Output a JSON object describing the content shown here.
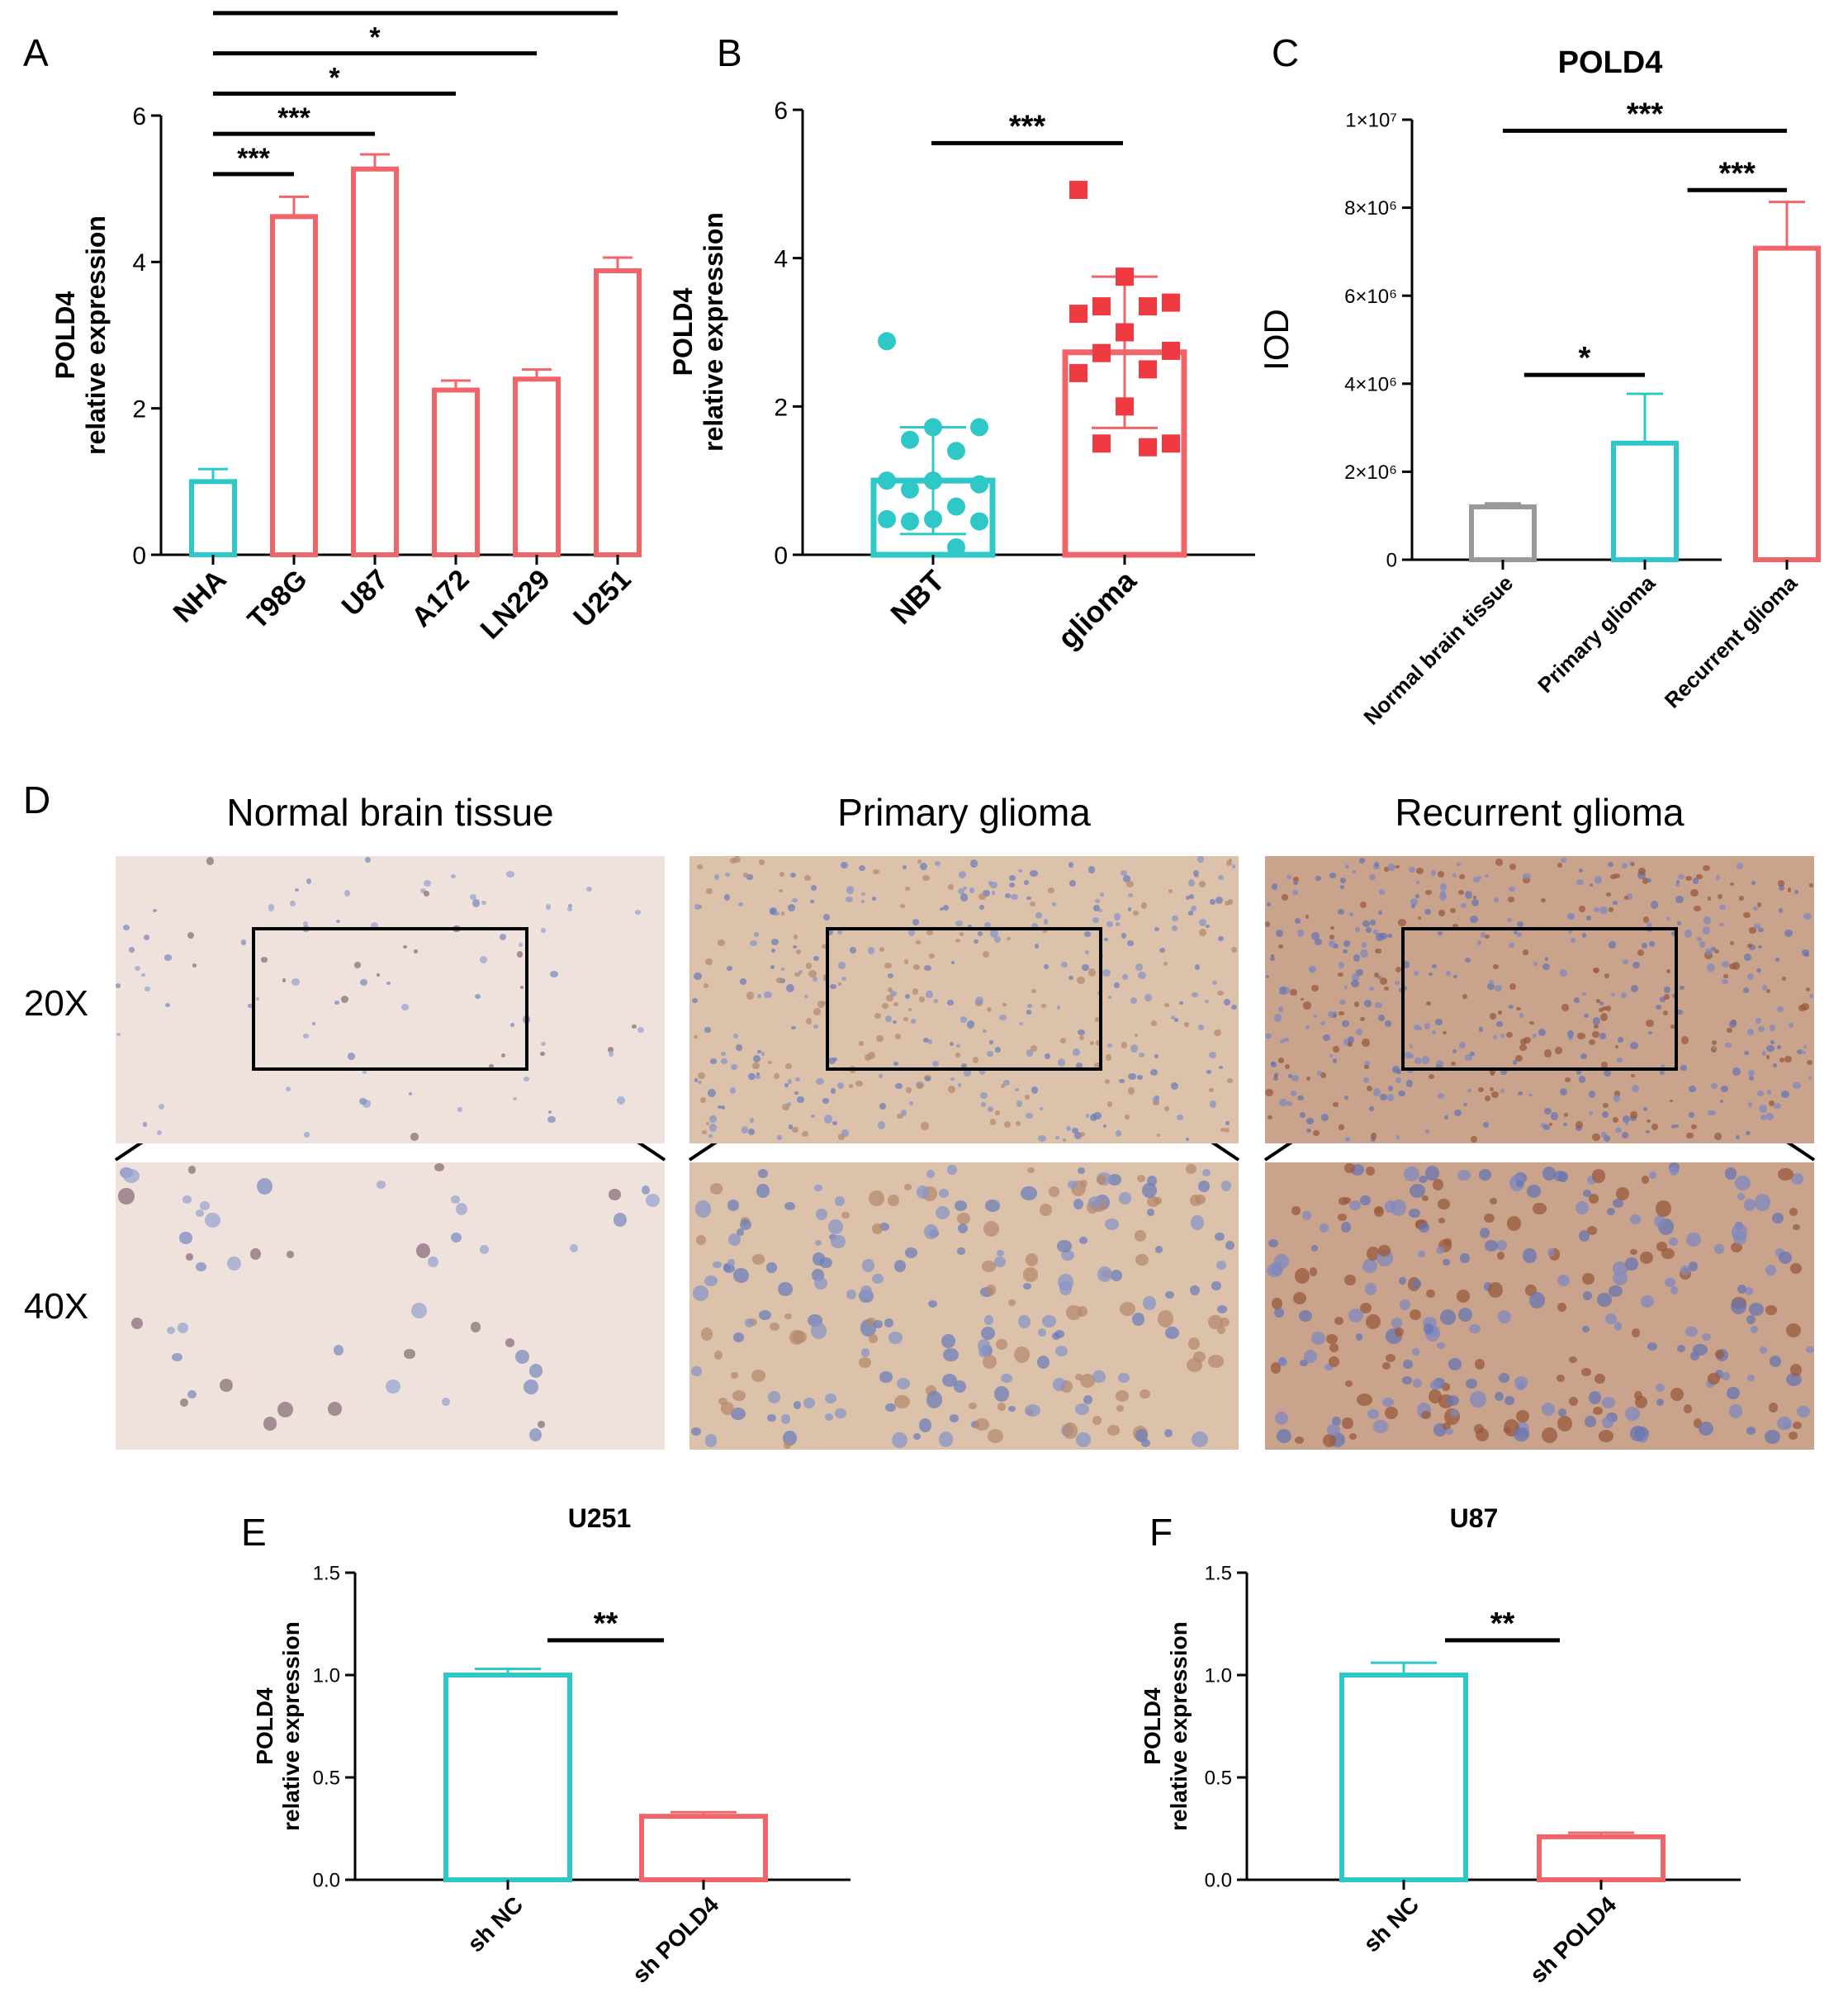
{
  "colors": {
    "cyan": "#2ec8c8",
    "red": "#f0656a",
    "gray": "#999999",
    "square_red": "#ee3a40",
    "axis": "#000000"
  },
  "panels": {
    "A": {
      "letter": "A"
    },
    "B": {
      "letter": "B"
    },
    "C": {
      "letter": "C"
    },
    "D": {
      "letter": "D"
    },
    "E": {
      "letter": "E"
    },
    "F": {
      "letter": "F"
    }
  },
  "panel_d": {
    "columns": [
      "Normal brain tissue",
      "Primary glioma",
      "Recurrent glioma"
    ],
    "rows": [
      "20X",
      "40X"
    ]
  },
  "chart_data": [
    {
      "id": "A",
      "type": "bar",
      "ylabel": [
        "POLD4",
        "relative expression"
      ],
      "ylim": [
        0,
        6
      ],
      "yticks": [
        "0",
        "2",
        "4",
        "6"
      ],
      "categories": [
        "NHA",
        "T98G",
        "U87",
        "A172",
        "LN229",
        "U251"
      ],
      "values": [
        1.0,
        4.62,
        5.27,
        2.25,
        2.4,
        3.88
      ],
      "errors": [
        0.17,
        0.27,
        0.2,
        0.13,
        0.13,
        0.18
      ],
      "colors": [
        "cyan",
        "red",
        "red",
        "red",
        "red",
        "red"
      ],
      "significance": [
        {
          "from": 0,
          "to": 1,
          "label": "***",
          "y": 5.2
        },
        {
          "from": 0,
          "to": 2,
          "label": "***",
          "y": 5.75
        },
        {
          "from": 0,
          "to": 3,
          "label": "*",
          "y": 6.3
        },
        {
          "from": 0,
          "to": 4,
          "label": "*",
          "y": 6.85
        },
        {
          "from": 0,
          "to": 5,
          "label": "**",
          "y": 7.4
        }
      ]
    },
    {
      "id": "B",
      "type": "scatter",
      "ylabel": [
        "POLD4",
        "relative expression"
      ],
      "ylim": [
        0,
        6
      ],
      "yticks": [
        "0",
        "2",
        "4",
        "6"
      ],
      "categories": [
        "NBT",
        "glioma"
      ],
      "means": [
        1.0,
        2.73
      ],
      "sd": [
        0.72,
        1.02
      ],
      "colors": [
        "cyan",
        "red"
      ],
      "points": [
        [
          2.88,
          1.72,
          1.72,
          1.55,
          1.4,
          1.0,
          1.0,
          0.95,
          0.88,
          0.65,
          0.48,
          0.48,
          0.45,
          0.45,
          0.1
        ],
        [
          4.92,
          3.75,
          3.4,
          3.35,
          3.35,
          3.25,
          3.0,
          2.75,
          2.72,
          2.5,
          2.45,
          2.0,
          1.5,
          1.5,
          1.45
        ]
      ],
      "significance": [
        {
          "from": 0,
          "to": 1,
          "label": "***",
          "y": 5.55
        }
      ]
    },
    {
      "id": "C",
      "type": "bar",
      "title": "POLD4",
      "ylabel": [
        "IOD"
      ],
      "ylim": [
        0,
        10000000
      ],
      "yticks": [
        "0",
        "2×10⁶",
        "4×10⁶",
        "6×10⁶",
        "8×10⁶",
        "1×10⁷"
      ],
      "categories": [
        "Normal brain tissue",
        "Primary glioma",
        "Recurrent glioma"
      ],
      "values": [
        1200000,
        2650000,
        7080000
      ],
      "errors": [
        80000,
        1120000,
        1050000
      ],
      "colors": [
        "gray",
        "cyan",
        "red"
      ],
      "significance": [
        {
          "from": 0,
          "to": 1,
          "label": "*",
          "y": 4200000,
          "left_offset": 0.15
        },
        {
          "from": 1,
          "to": 2,
          "label": "***",
          "y": 8400000,
          "left_offset": 0.3
        },
        {
          "from": 0,
          "to": 2,
          "label": "***",
          "y": 9750000,
          "left_offset": 0
        }
      ]
    },
    {
      "id": "E",
      "type": "bar",
      "title": "U251",
      "ylabel": [
        "POLD4",
        "relative expression"
      ],
      "ylim": [
        0,
        1.5
      ],
      "yticks": [
        "0.0",
        "0.5",
        "1.0",
        "1.5"
      ],
      "categories": [
        "sh NC",
        "sh POLD4"
      ],
      "values": [
        1.0,
        0.31
      ],
      "errors": [
        0.03,
        0.02
      ],
      "colors": [
        "cyan",
        "red"
      ],
      "significance": [
        {
          "from": 0,
          "to": 1,
          "label": "**",
          "y": 1.17
        }
      ]
    },
    {
      "id": "F",
      "type": "bar",
      "title": "U87",
      "ylabel": [
        "POLD4",
        "relative expression"
      ],
      "ylim": [
        0,
        1.5
      ],
      "yticks": [
        "0.0",
        "0.5",
        "1.0",
        "1.5"
      ],
      "categories": [
        "sh NC",
        "sh POLD4"
      ],
      "values": [
        1.0,
        0.21
      ],
      "errors": [
        0.06,
        0.02
      ],
      "colors": [
        "cyan",
        "red"
      ],
      "significance": [
        {
          "from": 0,
          "to": 1,
          "label": "**",
          "y": 1.17
        }
      ]
    }
  ]
}
